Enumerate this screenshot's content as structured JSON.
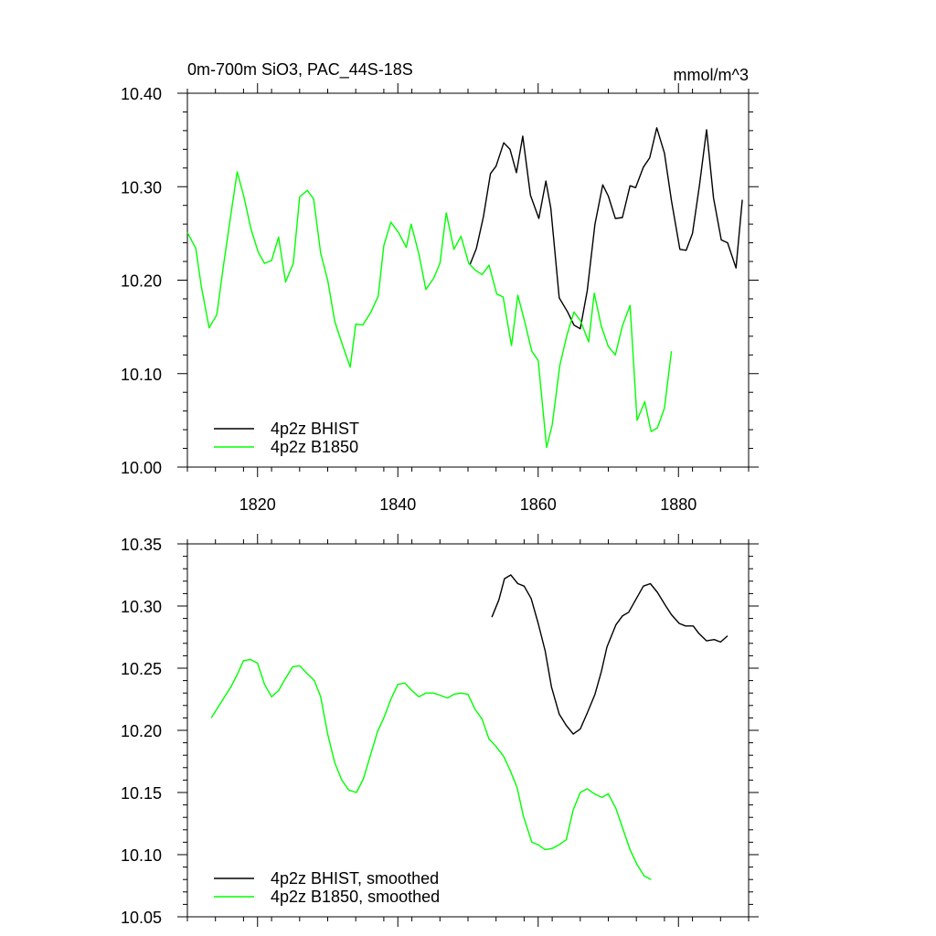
{
  "chart_data": [
    {
      "type": "line",
      "title": "0m-700m SiO3, PAC_44S-18S",
      "units": "mmol/m^3",
      "xlim": [
        1810,
        1890
      ],
      "ylim": [
        10.0,
        10.4
      ],
      "xticks": [
        1820,
        1840,
        1860,
        1880
      ],
      "xtick_labels": [
        "1820",
        "1840",
        "1860",
        "1880"
      ],
      "yticks": [
        10.0,
        10.1,
        10.2,
        10.3,
        10.4
      ],
      "ytick_labels": [
        "10.00",
        "10.10",
        "10.20",
        "10.30",
        "10.40"
      ],
      "legend_position": "bottom-left",
      "series": [
        {
          "name": "4p2z BHIST",
          "color": "#000000",
          "x": [
            1850.3,
            1851.2,
            1852.2,
            1853.2,
            1854.0,
            1855.1,
            1856.0,
            1856.9,
            1857.8,
            1858.9,
            1860.1,
            1861.1,
            1861.8,
            1863.0,
            1864.2,
            1865.1,
            1866.0,
            1867.0,
            1868.1,
            1869.2,
            1870.0,
            1871.0,
            1872.0,
            1873.1,
            1873.9,
            1875.0,
            1875.9,
            1876.9,
            1878.0,
            1879.0,
            1880.2,
            1881.1,
            1882.0,
            1883.0,
            1884.0,
            1885.0,
            1886.1,
            1887.0,
            1888.2,
            1889.1
          ],
          "y": [
            10.217,
            10.234,
            10.268,
            10.314,
            10.322,
            10.347,
            10.34,
            10.315,
            10.354,
            10.291,
            10.266,
            10.306,
            10.277,
            10.181,
            10.166,
            10.152,
            10.148,
            10.189,
            10.26,
            10.302,
            10.29,
            10.266,
            10.267,
            10.301,
            10.299,
            10.321,
            10.331,
            10.363,
            10.336,
            10.285,
            10.233,
            10.232,
            10.25,
            10.302,
            10.361,
            10.288,
            10.243,
            10.24,
            10.213,
            10.286
          ]
        },
        {
          "name": "4p2z B1850",
          "color": "#00ff00",
          "x": [
            1810.0,
            1811.2,
            1812.0,
            1813.1,
            1814.2,
            1815.1,
            1816.1,
            1817.1,
            1818.0,
            1819.1,
            1820.1,
            1821.0,
            1822.0,
            1823.0,
            1824.0,
            1825.1,
            1826.0,
            1827.1,
            1828.0,
            1829.0,
            1830.0,
            1831.0,
            1832.1,
            1833.2,
            1834.0,
            1835.0,
            1836.1,
            1837.2,
            1838.0,
            1839.0,
            1840.1,
            1841.2,
            1841.9,
            1843.0,
            1844.0,
            1845.1,
            1846.0,
            1846.9,
            1848.0,
            1849.0,
            1850.1,
            1851.0,
            1852.0,
            1853.0,
            1854.1,
            1855.0,
            1856.2,
            1857.1,
            1858.0,
            1859.1,
            1860.0,
            1861.2,
            1862.0,
            1863.1,
            1864.1,
            1865.1,
            1866.0,
            1867.2,
            1868.0,
            1869.0,
            1870.0,
            1871.0,
            1872.0,
            1873.1,
            1874.1,
            1875.2,
            1876.1,
            1877.0,
            1878.0,
            1879.0
          ],
          "y": [
            10.251,
            10.234,
            10.193,
            10.149,
            10.163,
            10.213,
            10.265,
            10.316,
            10.291,
            10.254,
            10.23,
            10.218,
            10.221,
            10.246,
            10.198,
            10.218,
            10.289,
            10.296,
            10.287,
            10.229,
            10.2,
            10.156,
            10.131,
            10.107,
            10.153,
            10.152,
            10.165,
            10.183,
            10.237,
            10.262,
            10.251,
            10.235,
            10.26,
            10.228,
            10.19,
            10.202,
            10.218,
            10.272,
            10.233,
            10.247,
            10.218,
            10.211,
            10.206,
            10.216,
            10.185,
            10.182,
            10.13,
            10.184,
            10.158,
            10.124,
            10.114,
            10.021,
            10.045,
            10.109,
            10.141,
            10.166,
            10.157,
            10.134,
            10.186,
            10.151,
            10.129,
            10.12,
            10.151,
            10.173,
            10.05,
            10.07,
            10.038,
            10.042,
            10.063,
            10.124
          ]
        }
      ]
    },
    {
      "type": "line",
      "xlim": [
        1810,
        1890
      ],
      "ylim": [
        10.05,
        10.35
      ],
      "xticks": [
        1820,
        1840,
        1860,
        1880
      ],
      "yticks": [
        10.05,
        10.1,
        10.15,
        10.2,
        10.25,
        10.3,
        10.35
      ],
      "ytick_labels": [
        "10.05",
        "10.10",
        "10.15",
        "10.20",
        "10.25",
        "10.30",
        "10.35"
      ],
      "legend_position": "bottom-left",
      "series": [
        {
          "name": "4p2z BHIST, smoothed",
          "color": "#000000",
          "x": [
            1853.4,
            1854.4,
            1855.2,
            1856.1,
            1857.1,
            1858.0,
            1859.0,
            1860.0,
            1861.0,
            1861.9,
            1863.0,
            1864.0,
            1865.0,
            1866.0,
            1867.0,
            1868.1,
            1869.0,
            1869.8,
            1871.1,
            1872.0,
            1872.9,
            1874.0,
            1875.0,
            1876.0,
            1877.0,
            1878.2,
            1879.0,
            1880.1,
            1881.0,
            1882.1,
            1882.9,
            1884.0,
            1885.1,
            1886.0,
            1887.0
          ],
          "y": [
            10.291,
            10.305,
            10.322,
            10.325,
            10.318,
            10.316,
            10.306,
            10.286,
            10.264,
            10.235,
            10.213,
            10.204,
            10.197,
            10.201,
            10.214,
            10.229,
            10.247,
            10.267,
            10.285,
            10.292,
            10.295,
            10.306,
            10.316,
            10.318,
            10.311,
            10.3,
            10.293,
            10.286,
            10.284,
            10.284,
            10.278,
            10.272,
            10.273,
            10.271,
            10.276
          ]
        },
        {
          "name": "4p2z B1850, smoothed",
          "color": "#00ff00",
          "x": [
            1813.4,
            1814.3,
            1815.2,
            1816.2,
            1817.2,
            1818.0,
            1819.0,
            1820.0,
            1821.0,
            1822.0,
            1823.0,
            1823.9,
            1825.0,
            1826.0,
            1827.0,
            1828.1,
            1829.0,
            1830.0,
            1831.0,
            1832.0,
            1833.0,
            1834.1,
            1835.1,
            1836.1,
            1837.1,
            1838.0,
            1839.0,
            1840.0,
            1841.0,
            1842.0,
            1843.0,
            1844.0,
            1845.1,
            1846.1,
            1847.1,
            1848.0,
            1849.0,
            1850.0,
            1851.0,
            1852.0,
            1853.0,
            1854.0,
            1855.1,
            1856.0,
            1857.0,
            1857.9,
            1859.1,
            1860.0,
            1861.0,
            1862.0,
            1863.0,
            1864.0,
            1865.0,
            1866.0,
            1867.0,
            1868.0,
            1869.1,
            1870.0,
            1871.1,
            1872.0,
            1873.1,
            1874.1,
            1875.1,
            1876.1
          ],
          "y": [
            10.21,
            10.218,
            10.226,
            10.235,
            10.246,
            10.256,
            10.257,
            10.254,
            10.237,
            10.227,
            10.232,
            10.241,
            10.251,
            10.252,
            10.246,
            10.24,
            10.227,
            10.197,
            10.174,
            10.16,
            10.152,
            10.15,
            10.161,
            10.18,
            10.199,
            10.21,
            10.225,
            10.237,
            10.238,
            10.232,
            10.227,
            10.23,
            10.23,
            10.228,
            10.226,
            10.229,
            10.23,
            10.229,
            10.217,
            10.209,
            10.193,
            10.187,
            10.179,
            10.168,
            10.154,
            10.131,
            10.11,
            10.108,
            10.104,
            10.105,
            10.108,
            10.112,
            10.136,
            10.15,
            10.153,
            10.149,
            10.146,
            10.149,
            10.137,
            10.122,
            10.104,
            10.092,
            10.083,
            10.08
          ]
        }
      ]
    }
  ]
}
